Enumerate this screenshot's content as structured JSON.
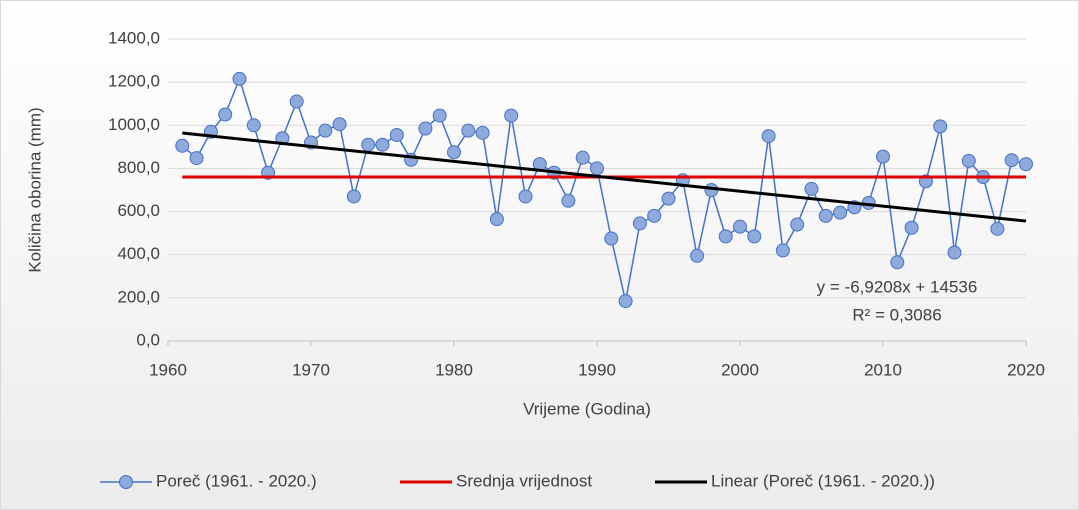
{
  "chart_data": {
    "type": "line",
    "xlabel": "Vrijeme (Godina)",
    "ylabel": "Količina oborina (mm)",
    "xlim": [
      1960,
      2020
    ],
    "xticks": [
      1960,
      1970,
      1980,
      1990,
      2000,
      2010,
      2020
    ],
    "ylim": [
      0,
      1400
    ],
    "yticks": [
      {
        "value": 0,
        "label": "0,0"
      },
      {
        "value": 200,
        "label": "200,0"
      },
      {
        "value": 400,
        "label": "400,0"
      },
      {
        "value": 600,
        "label": "600,0"
      },
      {
        "value": 800,
        "label": "800,0"
      },
      {
        "value": 1000,
        "label": "1000,0"
      },
      {
        "value": 1200,
        "label": "1200,0"
      },
      {
        "value": 1400,
        "label": "1400,0"
      }
    ],
    "grid": true,
    "legend": "bottom",
    "annotations": [
      "y = -6,9208x + 14536",
      "R² = 0,3086"
    ],
    "series": [
      {
        "name": "Poreč (1961. - 2020.)",
        "color": "#4472c4",
        "marker": true,
        "x": [
          1961,
          1962,
          1963,
          1964,
          1965,
          1966,
          1967,
          1968,
          1969,
          1970,
          1971,
          1972,
          1973,
          1974,
          1975,
          1976,
          1977,
          1978,
          1979,
          1980,
          1981,
          1982,
          1983,
          1984,
          1985,
          1986,
          1987,
          1988,
          1989,
          1990,
          1991,
          1992,
          1993,
          1994,
          1995,
          1996,
          1997,
          1998,
          1999,
          2000,
          2001,
          2002,
          2003,
          2004,
          2005,
          2006,
          2007,
          2008,
          2009,
          2010,
          2011,
          2012,
          2013,
          2014,
          2015,
          2016,
          2017,
          2018,
          2019,
          2020
        ],
        "values": [
          905,
          848,
          970,
          1050,
          1215,
          1000,
          780,
          940,
          1110,
          920,
          975,
          1005,
          670,
          910,
          910,
          955,
          840,
          985,
          1045,
          875,
          975,
          965,
          565,
          1045,
          670,
          820,
          780,
          650,
          850,
          800,
          475,
          185,
          545,
          580,
          660,
          745,
          395,
          700,
          485,
          530,
          485,
          950,
          420,
          540,
          705,
          580,
          595,
          620,
          640,
          855,
          365,
          525,
          740,
          995,
          410,
          835,
          760,
          520,
          838,
          820
        ]
      },
      {
        "name": "Srednja vrijednost",
        "color": "#e00000",
        "marker": false,
        "x": [
          1961,
          2020
        ],
        "values": [
          760,
          760
        ]
      },
      {
        "name": "Linear (Poreč (1961. - 2020.))",
        "color": "#000000",
        "marker": false,
        "x": [
          1961,
          2020
        ],
        "values": [
          964,
          556
        ]
      }
    ]
  }
}
